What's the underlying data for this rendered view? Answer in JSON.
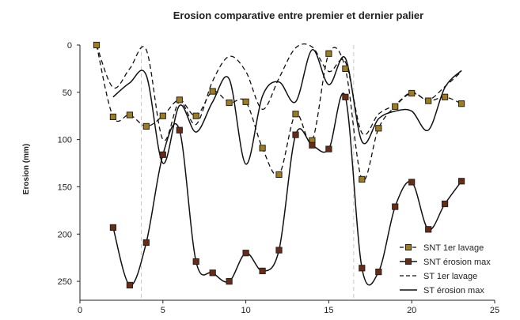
{
  "chart_data": {
    "type": "line",
    "title": "Erosion comparative entre premier et dernier palier",
    "xlabel": "",
    "ylabel": "Erosion (mm)",
    "xlim": [
      0,
      25
    ],
    "ylim": [
      0,
      270
    ],
    "y_inverted": true,
    "x_ticks": [
      0,
      5,
      10,
      15,
      20,
      25
    ],
    "y_ticks": [
      0,
      50,
      100,
      150,
      200,
      250
    ],
    "grid": false,
    "legend_position": "bottom-right",
    "reference_lines_x": [
      3.7,
      16.5
    ],
    "series": [
      {
        "name": "SNT 1er lavage",
        "style": "dashed-markers",
        "marker_color": "#a07d1c",
        "x": [
          1,
          2,
          3,
          4,
          5,
          6,
          7,
          8,
          9,
          10,
          11,
          12,
          13,
          14,
          15,
          16,
          17,
          18,
          19,
          20,
          21,
          22,
          23
        ],
        "y": [
          0,
          76,
          74,
          86,
          75,
          58,
          75,
          49,
          61,
          60,
          109,
          137,
          73,
          101,
          9,
          25,
          142,
          88,
          65,
          51,
          59,
          55,
          62
        ]
      },
      {
        "name": "SNT érosion max",
        "style": "solid-markers",
        "marker_color": "#6b2a14",
        "x": [
          2,
          3,
          4,
          5,
          6,
          7,
          8,
          9,
          10,
          11,
          12,
          13,
          14,
          15,
          16,
          17,
          18,
          19,
          20,
          21,
          22,
          23
        ],
        "y": [
          193,
          254,
          209,
          116,
          90,
          229,
          241,
          250,
          220,
          239,
          217,
          95,
          106,
          110,
          55,
          236,
          240,
          171,
          145,
          195,
          168,
          144
        ]
      },
      {
        "name": "ST 1er lavage",
        "style": "dashed",
        "x": [
          1,
          2,
          3,
          4,
          5,
          6,
          7,
          8,
          9,
          10,
          11,
          12,
          13,
          14,
          15,
          16,
          17,
          18,
          19,
          20,
          21,
          22,
          23
        ],
        "y": [
          0,
          45,
          25,
          5,
          100,
          60,
          84,
          38,
          12,
          28,
          68,
          35,
          3,
          2,
          28,
          18,
          93,
          73,
          63,
          50,
          58,
          44,
          28
        ]
      },
      {
        "name": "ST érosion max",
        "style": "solid",
        "x": [
          2,
          3,
          4,
          5,
          6,
          7,
          8,
          9,
          10,
          11,
          12,
          13,
          14,
          15,
          16,
          17,
          18,
          19,
          20,
          21,
          22,
          23
        ],
        "y": [
          55,
          40,
          32,
          125,
          64,
          92,
          60,
          36,
          126,
          54,
          39,
          60,
          5,
          42,
          14,
          102,
          78,
          70,
          70,
          90,
          45,
          27
        ]
      }
    ]
  }
}
